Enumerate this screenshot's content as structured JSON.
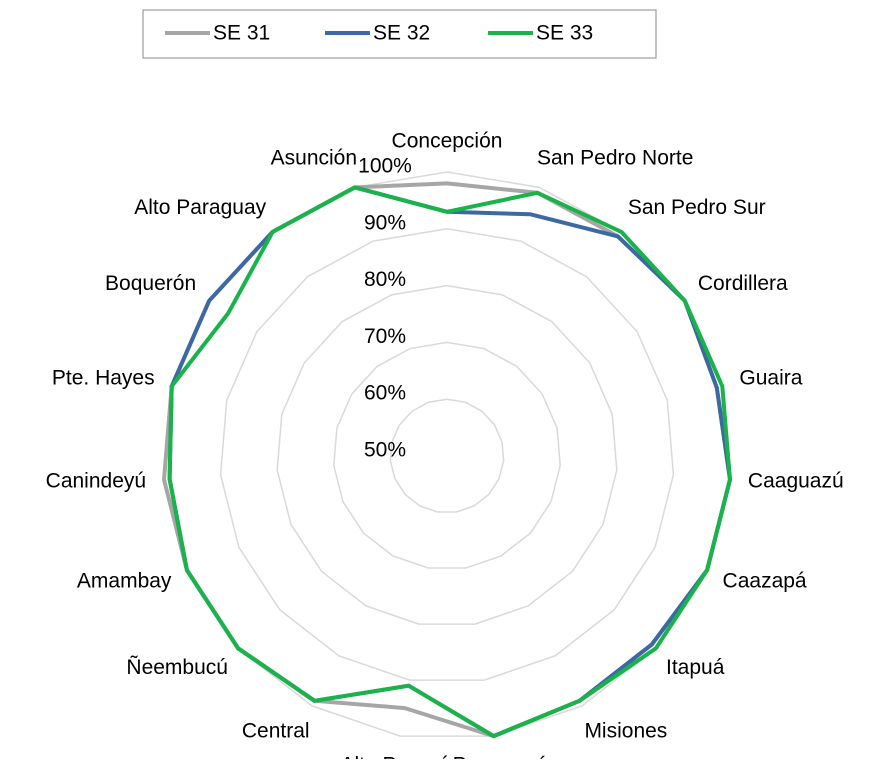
{
  "chart_data": {
    "type": "radar",
    "categories": [
      "Concepción",
      "San Pedro Norte",
      "San Pedro Sur",
      "Cordillera",
      "Guaira",
      "Caaguazú",
      "Caazapá",
      "Itapuá",
      "Misiones",
      "Paraguarí",
      "Alto Paraná",
      "Central",
      "Ñeembucú",
      "Amambay",
      "Canindeyú",
      "Pte. Hayes",
      "Boquerón",
      "Alto Paraguay",
      "Asunción"
    ],
    "series": [
      {
        "name": "SE 31",
        "color": "#a6a6a6",
        "values": [
          98,
          99,
          99,
          100,
          99,
          100,
          100,
          99,
          99,
          100,
          95,
          99,
          100,
          100,
          100,
          100,
          100,
          100,
          100
        ]
      },
      {
        "name": "SE 32",
        "color": "#3c68a4",
        "values": [
          93,
          95,
          99,
          100,
          99,
          100,
          100,
          99,
          99,
          100,
          91,
          99,
          100,
          100,
          99,
          100,
          100,
          100,
          100
        ]
      },
      {
        "name": "SE 33",
        "color": "#19b34a",
        "values": [
          93,
          99,
          100,
          100,
          100,
          100,
          100,
          100,
          99,
          100,
          91,
          99,
          100,
          100,
          99,
          100,
          96,
          100,
          100
        ]
      }
    ],
    "ylim": [
      50,
      100
    ],
    "yticks": [
      {
        "value": 50,
        "label": "50%"
      },
      {
        "value": 60,
        "label": "60%"
      },
      {
        "value": 70,
        "label": "70%"
      },
      {
        "value": 80,
        "label": "80%"
      },
      {
        "value": 90,
        "label": "90%"
      },
      {
        "value": 100,
        "label": "100%"
      }
    ],
    "grid": true,
    "legend": "top"
  }
}
